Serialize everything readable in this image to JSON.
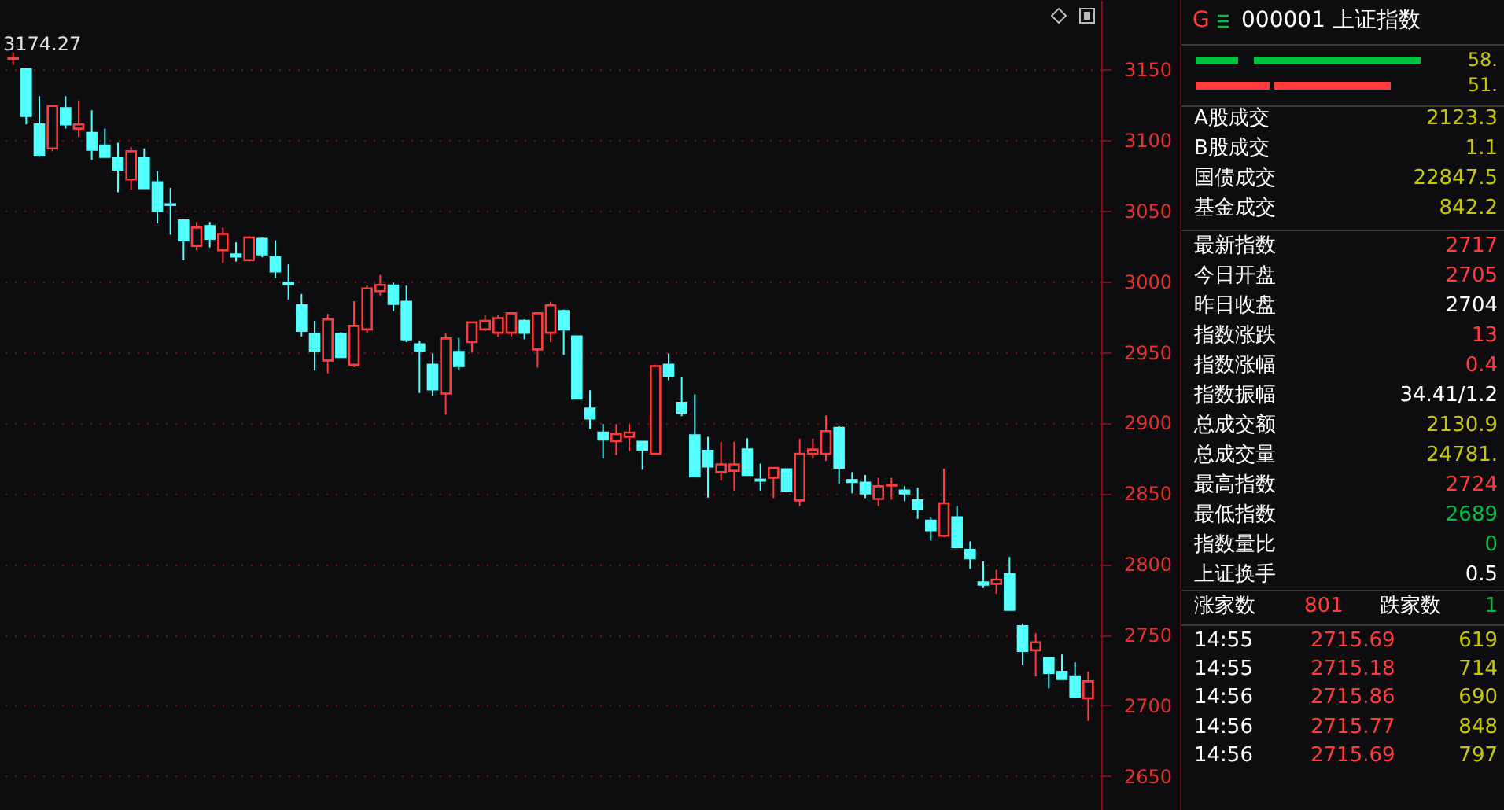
{
  "chart_data": [
    {
      "type": "candlestick",
      "categories": [
        null,
        null,
        null,
        null,
        null,
        null,
        null,
        null,
        null,
        null,
        null,
        null,
        null,
        null,
        null,
        null,
        null,
        null,
        null,
        null,
        null,
        null,
        null,
        null,
        null,
        null,
        null,
        null,
        null,
        null,
        null,
        null,
        null,
        null,
        null,
        null,
        null,
        null,
        null,
        null,
        null,
        null,
        null,
        null,
        null,
        null,
        null,
        null,
        null,
        null,
        null,
        null,
        null,
        null,
        null,
        null,
        null,
        null,
        null,
        null,
        null,
        null,
        null,
        null,
        null,
        null,
        null,
        null,
        null,
        null,
        null,
        null,
        null,
        null,
        null,
        null,
        null,
        null,
        null,
        null,
        null,
        null,
        null
      ],
      "ohlc": [
        [
          3157.5,
          3162,
          3153,
          3158
        ],
        [
          3150,
          3151,
          3111,
          3117
        ],
        [
          3111,
          3131,
          3088,
          3089
        ],
        [
          3094,
          3124,
          3092,
          3124
        ],
        [
          3122.5,
          3131,
          3108,
          3111
        ],
        [
          3108,
          3128,
          3102,
          3111
        ],
        [
          3105,
          3121,
          3086,
          3093
        ],
        [
          3096,
          3108,
          3088,
          3088
        ],
        [
          3087,
          3098,
          3063,
          3079
        ],
        [
          3072,
          3095,
          3065,
          3092
        ],
        [
          3087,
          3094,
          3066,
          3066
        ],
        [
          3070,
          3078,
          3041,
          3050
        ],
        [
          3054.5,
          3066,
          3033,
          3054
        ],
        [
          3043,
          3044,
          3015,
          3029
        ],
        [
          3025,
          3042,
          3022,
          3038
        ],
        [
          3039,
          3042,
          3024,
          3030
        ],
        [
          3022,
          3038,
          3013,
          3033.5
        ],
        [
          3019,
          3027.5,
          3014,
          3017.5
        ],
        [
          3015,
          3032,
          3014,
          3031
        ],
        [
          3030,
          3031,
          3017,
          3019
        ],
        [
          3017,
          3029,
          3002.5,
          3007
        ],
        [
          2999,
          3012,
          2987,
          2998
        ],
        [
          2983,
          2991,
          2961,
          2965
        ],
        [
          2963,
          2972,
          2937,
          2951
        ],
        [
          2944,
          2977,
          2935,
          2973
        ],
        [
          2963,
          2964,
          2946,
          2946.5
        ],
        [
          2941,
          2986,
          2939.5,
          2968.5
        ],
        [
          2966,
          2997,
          2963.5,
          2995
        ],
        [
          2993,
          3004.5,
          2990,
          2997.5
        ],
        [
          2997,
          2999,
          2979,
          2984
        ],
        [
          2985.5,
          2997,
          2957,
          2959
        ],
        [
          2955.5,
          2958,
          2921,
          2951
        ],
        [
          2941,
          2949,
          2919,
          2923.5
        ],
        [
          2920.6,
          2963,
          2905.7,
          2959.6
        ],
        [
          2950,
          2960,
          2937,
          2940
        ],
        [
          2957,
          2971,
          2949.5,
          2971
        ],
        [
          2966,
          2976,
          2964.7,
          2972
        ],
        [
          2963.6,
          2976,
          2960.7,
          2974
        ],
        [
          2963.6,
          2977.4,
          2961,
          2977.4
        ],
        [
          2972,
          2973,
          2959,
          2963.6
        ],
        [
          2951.8,
          2977.4,
          2939,
          2977.4
        ],
        [
          2963.6,
          2985.5,
          2957,
          2983
        ],
        [
          2979,
          2980,
          2948,
          2966
        ],
        [
          2961,
          2961,
          2917,
          2917
        ],
        [
          2910,
          2923,
          2895.7,
          2903
        ],
        [
          2893,
          2899,
          2874.5,
          2888
        ],
        [
          2887,
          2899,
          2877,
          2892
        ],
        [
          2890,
          2899,
          2880,
          2893
        ],
        [
          2886.4,
          2886.4,
          2866.7,
          2881
        ],
        [
          2878,
          2941,
          2877.5,
          2940
        ],
        [
          2941,
          2949,
          2930,
          2933
        ],
        [
          2914,
          2932,
          2904.6,
          2907
        ],
        [
          2891,
          2920,
          2862,
          2862
        ],
        [
          2880,
          2890,
          2847,
          2869
        ],
        [
          2865,
          2886.4,
          2859,
          2870.5
        ],
        [
          2866,
          2886.4,
          2852,
          2870.5
        ],
        [
          2881,
          2889,
          2863,
          2863
        ],
        [
          2859.7,
          2871,
          2852,
          2859
        ],
        [
          2861,
          2868,
          2846.7,
          2868
        ],
        [
          2867,
          2867,
          2852,
          2852
        ],
        [
          2845,
          2888.6,
          2841,
          2878
        ],
        [
          2878,
          2888.6,
          2874.5,
          2881
        ],
        [
          2878,
          2905,
          2873,
          2894
        ],
        [
          2896.4,
          2897.5,
          2856.7,
          2868
        ],
        [
          2859.4,
          2865,
          2850,
          2858
        ],
        [
          2857.5,
          2863,
          2846.7,
          2850
        ],
        [
          2846,
          2861,
          2841,
          2855
        ],
        [
          2855.5,
          2861,
          2845.5,
          2856
        ],
        [
          2852,
          2855,
          2844.5,
          2850
        ],
        [
          2845,
          2854,
          2832,
          2839
        ],
        [
          2830.7,
          2833,
          2816.6,
          2824
        ],
        [
          2820,
          2867.5,
          2819,
          2843
        ],
        [
          2833,
          2841,
          2812,
          2812
        ],
        [
          2810,
          2816,
          2796.6,
          2804
        ],
        [
          2787,
          2801.8,
          2783,
          2785.4
        ],
        [
          2786,
          2796,
          2779,
          2789
        ],
        [
          2792.9,
          2805,
          2767.6,
          2767.6
        ],
        [
          2756,
          2758,
          2728.6,
          2738.6
        ],
        [
          2739,
          2751,
          2720.5,
          2744.6
        ],
        [
          2733.5,
          2733.5,
          2712,
          2723
        ],
        [
          2723.8,
          2736,
          2718.6,
          2718.6
        ],
        [
          2720.5,
          2730.5,
          2705,
          2706
        ],
        [
          2705,
          2724,
          2689,
          2717
        ]
      ],
      "colors": [
        "#ff3b3b",
        "#54ffff",
        "#54ffff",
        "#ff3b3b",
        "#54ffff",
        "#ff3b3b",
        "#54ffff",
        "#54ffff",
        "#54ffff",
        "#ff3b3b",
        "#54ffff",
        "#54ffff",
        "#54ffff",
        "#54ffff",
        "#ff3b3b",
        "#54ffff",
        "#ff3b3b",
        "#54ffff",
        "#ff3b3b",
        "#54ffff",
        "#54ffff",
        "#54ffff",
        "#54ffff",
        "#54ffff",
        "#ff3b3b",
        "#54ffff",
        "#ff3b3b",
        "#ff3b3b",
        "#ff3b3b",
        "#54ffff",
        "#54ffff",
        "#54ffff",
        "#54ffff",
        "#ff3b3b",
        "#54ffff",
        "#ff3b3b",
        "#ff3b3b",
        "#ff3b3b",
        "#ff3b3b",
        "#54ffff",
        "#ff3b3b",
        "#ff3b3b",
        "#54ffff",
        "#54ffff",
        "#54ffff",
        "#54ffff",
        "#ff3b3b",
        "#ff3b3b",
        "#54ffff",
        "#ff3b3b",
        "#54ffff",
        "#54ffff",
        "#54ffff",
        "#54ffff",
        "#ff3b3b",
        "#ff3b3b",
        "#54ffff",
        "#54ffff",
        "#ff3b3b",
        "#54ffff",
        "#ff3b3b",
        "#ff3b3b",
        "#ff3b3b",
        "#54ffff",
        "#54ffff",
        "#54ffff",
        "#ff3b3b",
        "#ff3b3b",
        "#54ffff",
        "#54ffff",
        "#54ffff",
        "#ff3b3b",
        "#54ffff",
        "#54ffff",
        "#54ffff",
        "#ff3b3b",
        "#54ffff",
        "#54ffff",
        "#ff3b3b",
        "#54ffff",
        "#54ffff",
        "#54ffff",
        "#ff3b3b"
      ],
      "ylim": [
        2626,
        3199
      ],
      "yticks": [
        2650,
        2700,
        2750,
        2800,
        2850,
        2900,
        2950,
        3000,
        3050,
        3100,
        3150
      ],
      "grid": "y",
      "annotations": [
        "3174.27"
      ]
    },
    {
      "type": "other",
      "annotations": [
        "G",
        "000001 上证指数",
        "58.",
        "51.",
        "A股成交",
        "2123.3",
        "B股成交",
        "1.1",
        "国债成交",
        "22847.5",
        "基金成交",
        "842.2",
        "最新指数",
        "2717",
        "今日开盘",
        "2705",
        "昨日收盘",
        "2704",
        "指数涨跌",
        "13",
        "指数涨幅",
        "0.4",
        "指数振幅",
        "34.41/1.2",
        "总成交额",
        "2130.9",
        "总成交量",
        "24781.",
        "最高指数",
        "2724",
        "最低指数",
        "2689",
        "指数量比",
        "0",
        "上证换手",
        "0.5",
        "涨家数",
        "801",
        "跌家数",
        "1",
        "14:55",
        "2715.69",
        "619",
        "14:55",
        "2715.18",
        "714",
        "14:56",
        "2715.86",
        "690",
        "14:56",
        "2715.77",
        "848",
        "14:56",
        "2715.69",
        "797"
      ],
      "colors": [
        "#ff3b3b",
        "#ffffff",
        "#c8c800",
        "#c8c800",
        "#ffffff",
        "#c8c800",
        "#ffffff",
        "#c8c800",
        "#ffffff",
        "#c8c800",
        "#ffffff",
        "#c8c800",
        "#ffffff",
        "#ff3b3b",
        "#ffffff",
        "#ff3b3b",
        "#ffffff",
        "#ffffff",
        "#ffffff",
        "#ff3b3b",
        "#ffffff",
        "#ff3b3b",
        "#ffffff",
        "#ffffff",
        "#ffffff",
        "#c8c800",
        "#ffffff",
        "#c8c800",
        "#ffffff",
        "#ff3b3b",
        "#ffffff",
        "#00c040",
        "#ffffff",
        "#00c040",
        "#ffffff",
        "#ffffff",
        "#ffffff",
        "#ff3b3b",
        "#ffffff",
        "#00c040",
        "#ffffff",
        "#ff3b3b",
        "#c8c800",
        "#ffffff",
        "#ff3b3b",
        "#c8c800",
        "#ffffff",
        "#ff3b3b",
        "#c8c800",
        "#ffffff",
        "#ff3b3b",
        "#c8c800",
        "#ffffff",
        "#ff3b3b",
        "#c8c800"
      ]
    }
  ]
}
